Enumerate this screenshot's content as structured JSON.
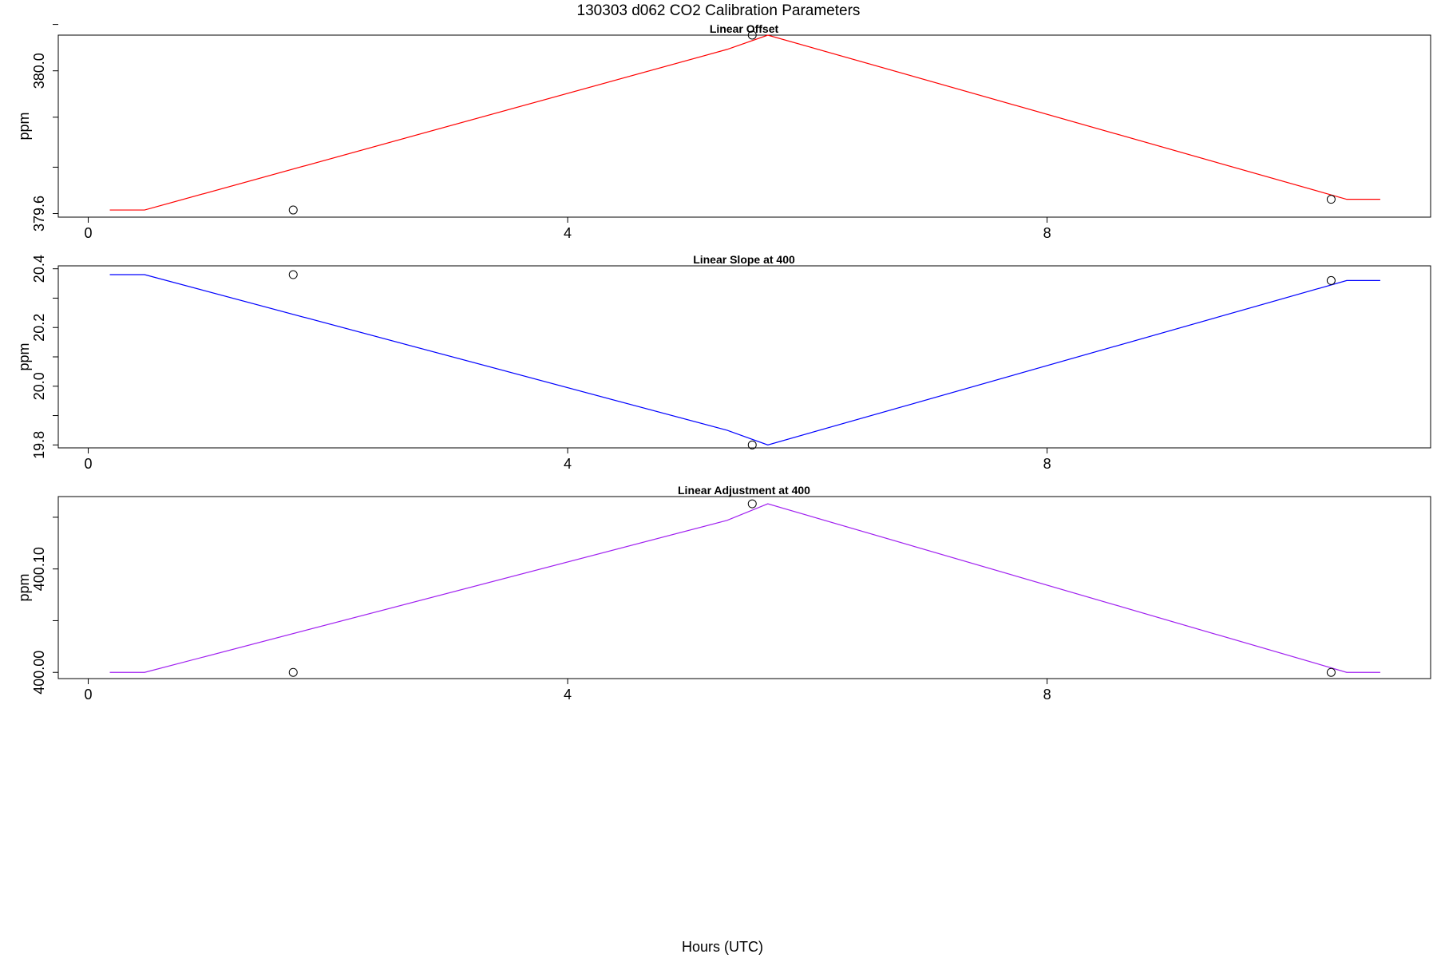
{
  "figure": {
    "title": "130303   d062   CO2 Calibration Parameters",
    "xlabel": "Hours (UTC)"
  },
  "chart_data": [
    {
      "type": "line",
      "title": "Linear Offset",
      "xlabel": "",
      "ylabel": "ppm",
      "xlim": [
        -0.25,
        11.2
      ],
      "ylim": [
        379.59,
        380.1
      ],
      "x_ticks": [
        0,
        4,
        8
      ],
      "y_ticks": [
        379.6,
        380.0
      ],
      "y_minor_ticks": [
        379.6,
        379.73,
        379.87,
        380.0,
        380.13,
        380.27
      ],
      "color": "#ff0000",
      "series": [
        {
          "x": [
            0.18,
            0.47,
            5.33,
            5.67,
            10.5,
            10.78
          ],
          "y": [
            379.61,
            379.61,
            380.06,
            380.1,
            379.64,
            379.64
          ]
        }
      ],
      "points": {
        "x": [
          1.71,
          5.54,
          10.37
        ],
        "y": [
          379.61,
          380.1,
          379.64
        ]
      }
    },
    {
      "type": "line",
      "title": "Linear Slope at 400",
      "xlabel": "",
      "ylabel": "ppm",
      "xlim": [
        -0.25,
        11.2
      ],
      "ylim": [
        19.79,
        20.41
      ],
      "x_ticks": [
        0,
        4,
        8
      ],
      "y_ticks": [
        19.8,
        20.0,
        20.2,
        20.4
      ],
      "y_minor_ticks": [
        19.8,
        19.9,
        20.0,
        20.1,
        20.2,
        20.3,
        20.4
      ],
      "color": "#0000ff",
      "series": [
        {
          "x": [
            0.18,
            0.47,
            5.33,
            5.67,
            10.5,
            10.78
          ],
          "y": [
            20.38,
            20.38,
            19.85,
            19.8,
            20.36,
            20.36
          ]
        }
      ],
      "points": {
        "x": [
          1.71,
          5.54,
          10.37
        ],
        "y": [
          20.38,
          19.8,
          20.36
        ]
      }
    },
    {
      "type": "line",
      "title": "Linear Adjustment at 400",
      "xlabel": "",
      "ylabel": "ppm",
      "xlim": [
        -0.25,
        11.2
      ],
      "ylim": [
        399.994,
        400.17
      ],
      "x_ticks": [
        0,
        4,
        8
      ],
      "y_ticks": [
        400.0,
        400.1
      ],
      "y_minor_ticks": [
        400.0,
        400.05,
        400.1,
        400.15
      ],
      "color": "#a020f0",
      "series": [
        {
          "x": [
            0.18,
            0.47,
            5.33,
            5.67,
            10.5,
            10.78
          ],
          "y": [
            400.0,
            400.0,
            400.147,
            400.163,
            400.0,
            400.0
          ]
        }
      ],
      "points": {
        "x": [
          1.71,
          5.54,
          10.37
        ],
        "y": [
          400.0,
          400.163,
          400.0
        ]
      }
    }
  ]
}
